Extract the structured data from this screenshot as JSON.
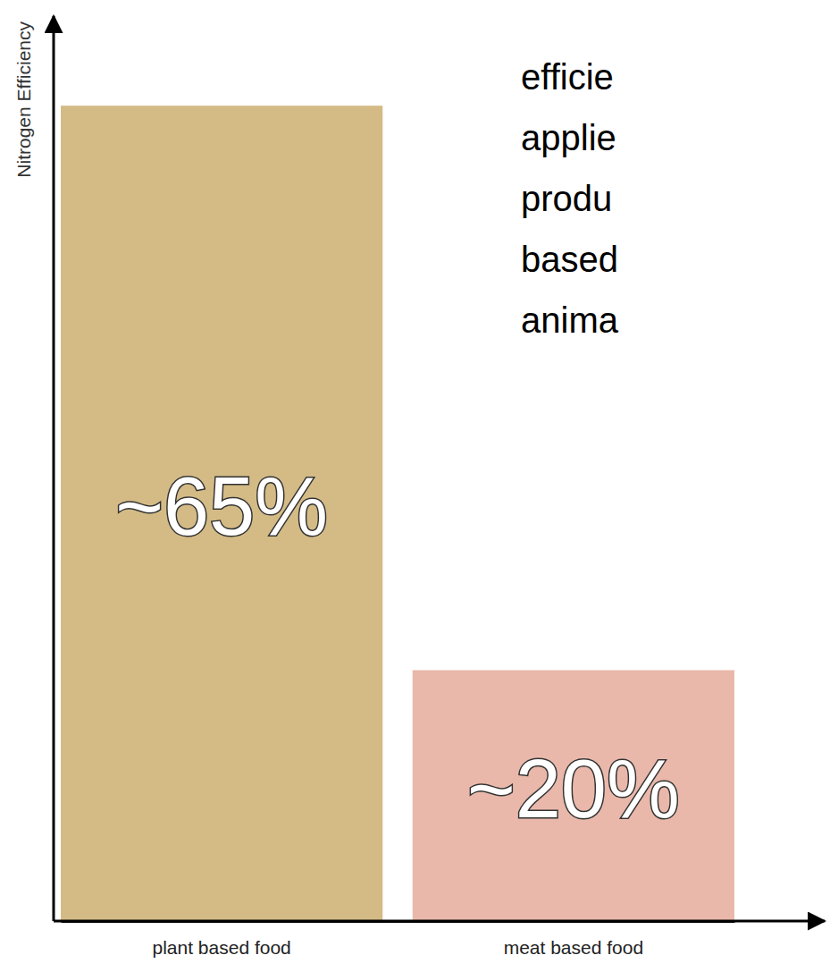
{
  "chart_data": {
    "type": "bar",
    "y_label": "Nitrogen Efficiency",
    "categories": [
      "plant based food",
      "meat based food"
    ],
    "values": [
      65,
      20
    ],
    "value_labels": [
      "~65%",
      "~20%"
    ],
    "data_labels": true,
    "colors": [
      "#d4bb86",
      "#e9b8aa"
    ],
    "ylim": [
      0,
      72
    ],
    "tick_labels": "x",
    "annotations": [
      "efficie",
      "applie",
      "produ",
      "based",
      "anima"
    ]
  }
}
